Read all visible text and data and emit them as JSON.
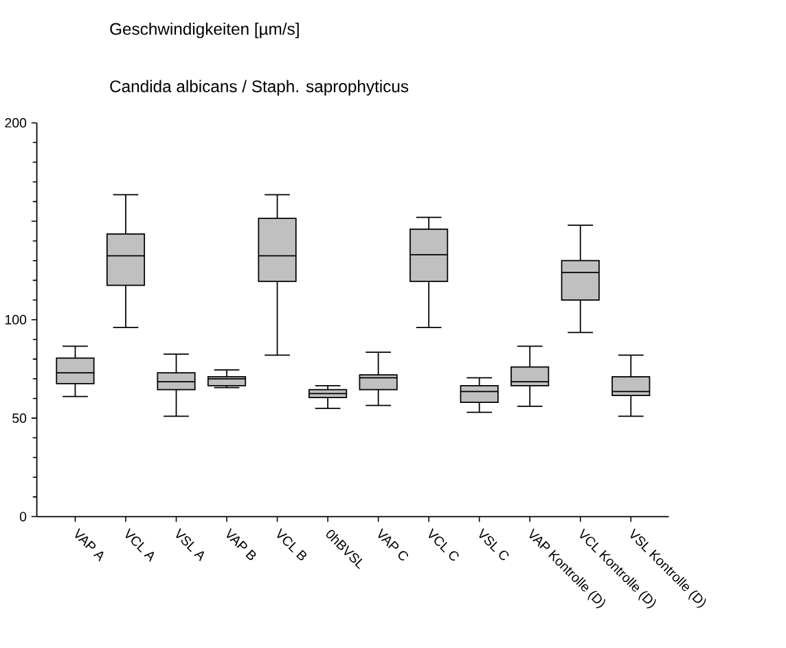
{
  "chart_data": {
    "type": "box",
    "title": "Geschwindigkeiten [µm/s]",
    "subtitle": "Candida albicans / Staph. saprophyticus",
    "categories": [
      "VAP A",
      "VCL A",
      "VSL A",
      "VAP B",
      "VCL B",
      "0hBVSL",
      "VAP C",
      "VCL C",
      "VSL C",
      "VAP Kontrolle (D)",
      "VCL Kontrolle (D)",
      "VSL Kontrolle (D)"
    ],
    "color": "#c0c0c0",
    "boxes": [
      {
        "low": 61,
        "q1": 67.5,
        "median": 73,
        "q3": 80.5,
        "high": 86.5
      },
      {
        "low": 96,
        "q1": 117.5,
        "median": 132.5,
        "q3": 143.5,
        "high": 163.5
      },
      {
        "low": 51,
        "q1": 64.5,
        "median": 68.5,
        "q3": 73,
        "high": 82.5
      },
      {
        "low": 65.5,
        "q1": 66.5,
        "median": 70,
        "q3": 71,
        "high": 74.5
      },
      {
        "low": 82,
        "q1": 119.5,
        "median": 132.5,
        "q3": 151.5,
        "high": 163.5
      },
      {
        "low": 55,
        "q1": 60.5,
        "median": 62.5,
        "q3": 64.5,
        "high": 66.5
      },
      {
        "low": 56.5,
        "q1": 64.5,
        "median": 70.5,
        "q3": 72,
        "high": 83.5
      },
      {
        "low": 96,
        "q1": 119.5,
        "median": 133,
        "q3": 146,
        "high": 152
      },
      {
        "low": 53,
        "q1": 58,
        "median": 63.5,
        "q3": 66.5,
        "high": 70.5
      },
      {
        "low": 56,
        "q1": 66.5,
        "median": 68.5,
        "q3": 76,
        "high": 86.5
      },
      {
        "low": 93.5,
        "q1": 110,
        "median": 124,
        "q3": 130,
        "high": 148
      },
      {
        "low": 51,
        "q1": 61.5,
        "median": 63.5,
        "q3": 71,
        "high": 82
      }
    ],
    "ylim": [
      0,
      200
    ],
    "yticks": [
      0,
      50,
      100,
      {
        "value": 150,
        "label": null
      },
      200
    ],
    "grid": false
  }
}
